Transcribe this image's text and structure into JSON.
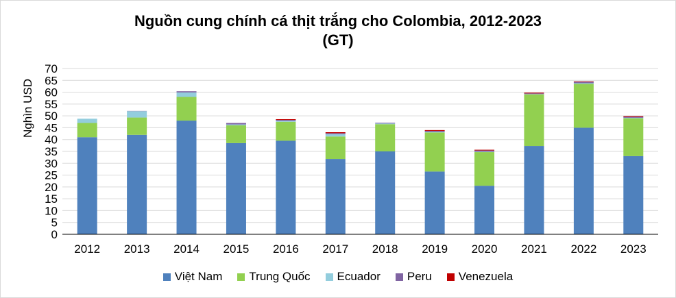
{
  "chart_data": {
    "type": "bar",
    "stacked": true,
    "title_line1": "Nguồn cung chính cá thịt trắng cho Colombia, 2012-2023",
    "title_line2": "(GT)",
    "ylabel": "Nghìn USD",
    "xlabel": "",
    "ylim": [
      0,
      70
    ],
    "yticks": [
      "0",
      "5",
      "10",
      "15",
      "20",
      "25",
      "30",
      "35",
      "40",
      "45",
      "50",
      "55",
      "60",
      "65",
      "70"
    ],
    "grid": true,
    "legend_position": "bottom",
    "categories": [
      "2012",
      "2013",
      "2014",
      "2015",
      "2016",
      "2017",
      "2018",
      "2019",
      "2020",
      "2021",
      "2022",
      "2023"
    ],
    "series": [
      {
        "name": "Việt Nam",
        "color": "#4f81bd",
        "values": [
          41,
          42,
          48,
          38.5,
          39.5,
          31.8,
          35,
          26.5,
          20.5,
          37.3,
          45,
          33
        ]
      },
      {
        "name": "Trung Quốc",
        "color": "#92d050",
        "values": [
          6,
          7.3,
          10,
          7.5,
          8,
          9.5,
          11.5,
          16.5,
          14.2,
          21.8,
          18.5,
          16
        ]
      },
      {
        "name": "Ecuador",
        "color": "#93cddd",
        "values": [
          1.8,
          2.7,
          1.9,
          0.4,
          0.4,
          1,
          0.3,
          0.2,
          0.2,
          0.1,
          0.3,
          0.2
        ]
      },
      {
        "name": "Peru",
        "color": "#8064a2",
        "values": [
          0,
          0.1,
          0.5,
          0.6,
          0.4,
          0.4,
          0.3,
          0.5,
          0.5,
          0.3,
          0.6,
          0.4
        ]
      },
      {
        "name": "Venezuela",
        "color": "#c00000",
        "values": [
          0,
          0,
          0,
          0,
          0.3,
          0.4,
          0,
          0.3,
          0.3,
          0.3,
          0.2,
          0.3
        ]
      }
    ]
  }
}
